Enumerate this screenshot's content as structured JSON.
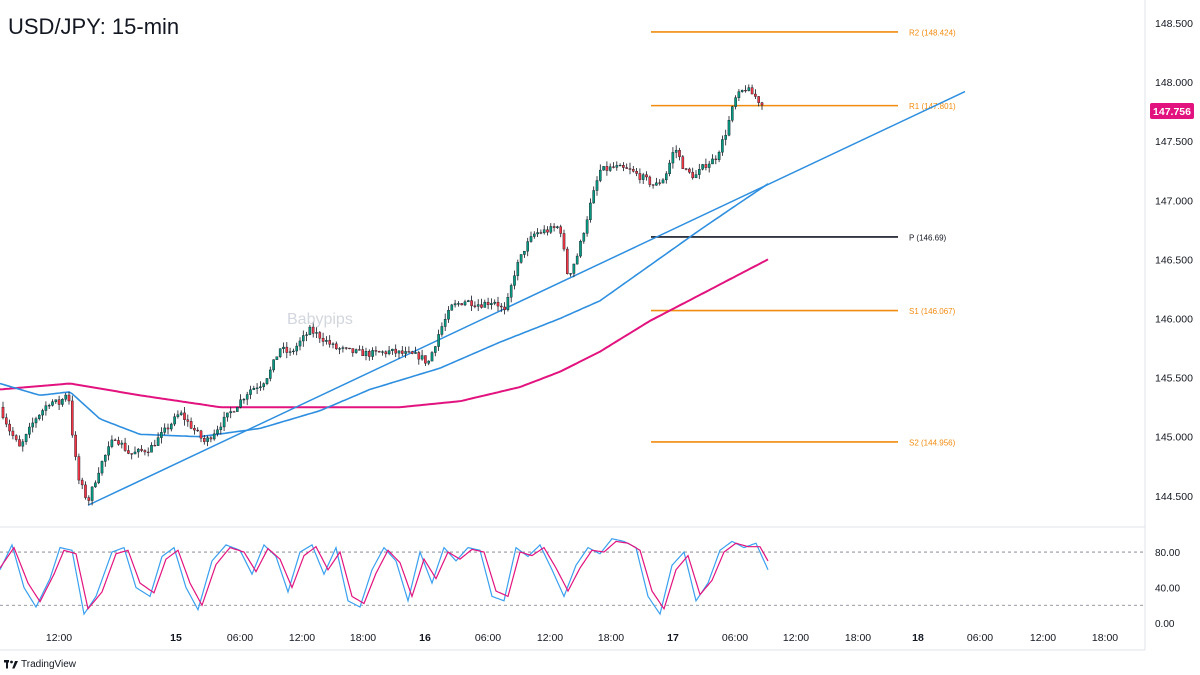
{
  "header": {
    "title": "USD/JPY: 15-min"
  },
  "watermark": "Babypips",
  "footer": {
    "brand": "TradingView",
    "logo_icon": "tradingview-logo-icon"
  },
  "colors": {
    "candle_up": "#089981",
    "candle_down": "#f23645",
    "wick": "#131722",
    "ma_fast": "#2e8fe0",
    "ma_slow": "#e2137f",
    "trendline": "#2e8fe0",
    "pivot_orange": "#f28c0f",
    "pivot_black": "#131722",
    "stoch_k": "#3aa0ef",
    "stoch_d": "#e2137f",
    "price_label_bg": "#e2137f"
  },
  "chart_data": {
    "type": "candlestick",
    "timeframe": "15-min",
    "symbol": "USD/JPY",
    "current_price": 147.756,
    "current_price_label": "147.756",
    "y_axis": {
      "range": [
        144.2,
        148.6
      ],
      "ticks": [
        "148.500",
        "148.000",
        "147.500",
        "147.000",
        "146.500",
        "146.000",
        "145.500",
        "145.000",
        "144.500"
      ]
    },
    "x_axis": {
      "labels": [
        "12:00",
        "15",
        "06:00",
        "12:00",
        "18:00",
        "16",
        "06:00",
        "12:00",
        "18:00",
        "17",
        "06:00",
        "12:00",
        "18:00",
        "18",
        "06:00",
        "12:00",
        "18:00"
      ],
      "day_labels": [
        "15",
        "16",
        "17",
        "18"
      ]
    },
    "pivot_levels": [
      {
        "label": "R2 (148.424)",
        "value": 148.424
      },
      {
        "label": "R1 (147.801)",
        "value": 147.801
      },
      {
        "label": "P (146.69)",
        "value": 146.69
      },
      {
        "label": "S1 (146.067)",
        "value": 146.067
      },
      {
        "label": "S2 (144.956)",
        "value": 144.956
      }
    ],
    "price_anchors": [
      [
        0,
        145.25
      ],
      [
        10,
        145.05
      ],
      [
        20,
        144.9
      ],
      [
        35,
        145.15
      ],
      [
        50,
        145.3
      ],
      [
        60,
        145.28
      ],
      [
        68,
        145.4
      ],
      [
        72,
        145.05
      ],
      [
        78,
        144.65
      ],
      [
        88,
        144.45
      ],
      [
        100,
        144.75
      ],
      [
        115,
        145.0
      ],
      [
        130,
        144.85
      ],
      [
        150,
        144.9
      ],
      [
        165,
        145.05
      ],
      [
        180,
        145.2
      ],
      [
        195,
        145.05
      ],
      [
        205,
        144.95
      ],
      [
        220,
        145.1
      ],
      [
        235,
        145.25
      ],
      [
        250,
        145.4
      ],
      [
        262,
        145.45
      ],
      [
        270,
        145.55
      ],
      [
        280,
        145.75
      ],
      [
        290,
        145.7
      ],
      [
        300,
        145.8
      ],
      [
        310,
        145.9
      ],
      [
        320,
        145.85
      ],
      [
        335,
        145.75
      ],
      [
        350,
        145.72
      ],
      [
        370,
        145.7
      ],
      [
        390,
        145.72
      ],
      [
        405,
        145.7
      ],
      [
        420,
        145.68
      ],
      [
        428,
        145.62
      ],
      [
        440,
        145.9
      ],
      [
        452,
        146.1
      ],
      [
        465,
        146.15
      ],
      [
        480,
        146.12
      ],
      [
        495,
        146.15
      ],
      [
        505,
        146.05
      ],
      [
        515,
        146.4
      ],
      [
        525,
        146.6
      ],
      [
        535,
        146.72
      ],
      [
        550,
        146.75
      ],
      [
        560,
        146.78
      ],
      [
        568,
        146.35
      ],
      [
        578,
        146.55
      ],
      [
        590,
        146.95
      ],
      [
        600,
        147.25
      ],
      [
        615,
        147.28
      ],
      [
        630,
        147.25
      ],
      [
        645,
        147.18
      ],
      [
        655,
        147.12
      ],
      [
        665,
        147.2
      ],
      [
        675,
        147.45
      ],
      [
        685,
        147.25
      ],
      [
        695,
        147.2
      ],
      [
        705,
        147.3
      ],
      [
        715,
        147.35
      ],
      [
        725,
        147.55
      ],
      [
        735,
        147.85
      ],
      [
        745,
        147.95
      ],
      [
        755,
        147.88
      ],
      [
        765,
        147.78
      ]
    ],
    "indicators": [
      {
        "name": "moving-average-fast",
        "anchors": [
          [
            0,
            145.45
          ],
          [
            40,
            145.35
          ],
          [
            70,
            145.38
          ],
          [
            100,
            145.15
          ],
          [
            140,
            145.02
          ],
          [
            200,
            145.0
          ],
          [
            260,
            145.07
          ],
          [
            320,
            145.22
          ],
          [
            370,
            145.4
          ],
          [
            440,
            145.58
          ],
          [
            500,
            145.8
          ],
          [
            560,
            146.0
          ],
          [
            600,
            146.15
          ],
          [
            650,
            146.45
          ],
          [
            700,
            146.75
          ],
          [
            740,
            146.98
          ],
          [
            768,
            147.14
          ]
        ]
      },
      {
        "name": "moving-average-slow",
        "anchors": [
          [
            0,
            145.4
          ],
          [
            70,
            145.45
          ],
          [
            140,
            145.35
          ],
          [
            220,
            145.25
          ],
          [
            300,
            145.25
          ],
          [
            400,
            145.25
          ],
          [
            460,
            145.3
          ],
          [
            520,
            145.42
          ],
          [
            560,
            145.55
          ],
          [
            600,
            145.72
          ],
          [
            650,
            145.98
          ],
          [
            700,
            146.2
          ],
          [
            768,
            146.5
          ]
        ]
      },
      {
        "name": "trendline",
        "points": [
          [
            88,
            144.42
          ],
          [
            965,
            147.92
          ]
        ]
      }
    ],
    "stochastic": {
      "levels": [
        80,
        20
      ],
      "tick_labels": [
        "80.00",
        "40.00",
        "0.00"
      ],
      "k_anchors": [
        [
          0,
          60
        ],
        [
          12,
          88
        ],
        [
          24,
          40
        ],
        [
          36,
          18
        ],
        [
          50,
          50
        ],
        [
          60,
          85
        ],
        [
          72,
          82
        ],
        [
          84,
          10
        ],
        [
          96,
          30
        ],
        [
          112,
          80
        ],
        [
          124,
          85
        ],
        [
          136,
          40
        ],
        [
          150,
          30
        ],
        [
          162,
          75
        ],
        [
          174,
          85
        ],
        [
          186,
          40
        ],
        [
          198,
          15
        ],
        [
          212,
          70
        ],
        [
          226,
          88
        ],
        [
          240,
          82
        ],
        [
          252,
          55
        ],
        [
          264,
          88
        ],
        [
          276,
          75
        ],
        [
          288,
          35
        ],
        [
          300,
          80
        ],
        [
          312,
          88
        ],
        [
          324,
          55
        ],
        [
          336,
          85
        ],
        [
          348,
          25
        ],
        [
          360,
          18
        ],
        [
          372,
          60
        ],
        [
          384,
          85
        ],
        [
          396,
          70
        ],
        [
          408,
          25
        ],
        [
          420,
          80
        ],
        [
          432,
          45
        ],
        [
          444,
          85
        ],
        [
          456,
          70
        ],
        [
          468,
          85
        ],
        [
          480,
          82
        ],
        [
          492,
          30
        ],
        [
          504,
          25
        ],
        [
          516,
          85
        ],
        [
          528,
          75
        ],
        [
          540,
          88
        ],
        [
          552,
          60
        ],
        [
          564,
          30
        ],
        [
          576,
          65
        ],
        [
          588,
          85
        ],
        [
          600,
          78
        ],
        [
          612,
          95
        ],
        [
          624,
          92
        ],
        [
          636,
          85
        ],
        [
          648,
          30
        ],
        [
          660,
          10
        ],
        [
          672,
          65
        ],
        [
          684,
          80
        ],
        [
          696,
          25
        ],
        [
          708,
          45
        ],
        [
          720,
          82
        ],
        [
          732,
          92
        ],
        [
          744,
          85
        ],
        [
          756,
          90
        ],
        [
          768,
          60
        ]
      ],
      "d_anchors": [
        [
          0,
          62
        ],
        [
          14,
          85
        ],
        [
          28,
          45
        ],
        [
          40,
          24
        ],
        [
          54,
          55
        ],
        [
          64,
          82
        ],
        [
          76,
          78
        ],
        [
          88,
          16
        ],
        [
          102,
          35
        ],
        [
          116,
          78
        ],
        [
          128,
          82
        ],
        [
          140,
          45
        ],
        [
          154,
          34
        ],
        [
          166,
          72
        ],
        [
          178,
          82
        ],
        [
          190,
          45
        ],
        [
          202,
          20
        ],
        [
          216,
          66
        ],
        [
          230,
          85
        ],
        [
          244,
          80
        ],
        [
          256,
          58
        ],
        [
          268,
          84
        ],
        [
          280,
          72
        ],
        [
          292,
          40
        ],
        [
          304,
          76
        ],
        [
          316,
          86
        ],
        [
          328,
          60
        ],
        [
          340,
          80
        ],
        [
          352,
          30
        ],
        [
          364,
          22
        ],
        [
          376,
          56
        ],
        [
          388,
          82
        ],
        [
          400,
          68
        ],
        [
          412,
          30
        ],
        [
          424,
          72
        ],
        [
          436,
          50
        ],
        [
          448,
          80
        ],
        [
          460,
          72
        ],
        [
          472,
          83
        ],
        [
          484,
          80
        ],
        [
          496,
          36
        ],
        [
          508,
          30
        ],
        [
          520,
          80
        ],
        [
          532,
          76
        ],
        [
          544,
          85
        ],
        [
          556,
          62
        ],
        [
          568,
          36
        ],
        [
          580,
          62
        ],
        [
          592,
          82
        ],
        [
          604,
          80
        ],
        [
          616,
          92
        ],
        [
          628,
          90
        ],
        [
          640,
          82
        ],
        [
          652,
          36
        ],
        [
          664,
          16
        ],
        [
          676,
          60
        ],
        [
          688,
          76
        ],
        [
          700,
          32
        ],
        [
          712,
          48
        ],
        [
          724,
          80
        ],
        [
          736,
          90
        ],
        [
          748,
          86
        ],
        [
          760,
          86
        ],
        [
          768,
          70
        ]
      ]
    }
  }
}
